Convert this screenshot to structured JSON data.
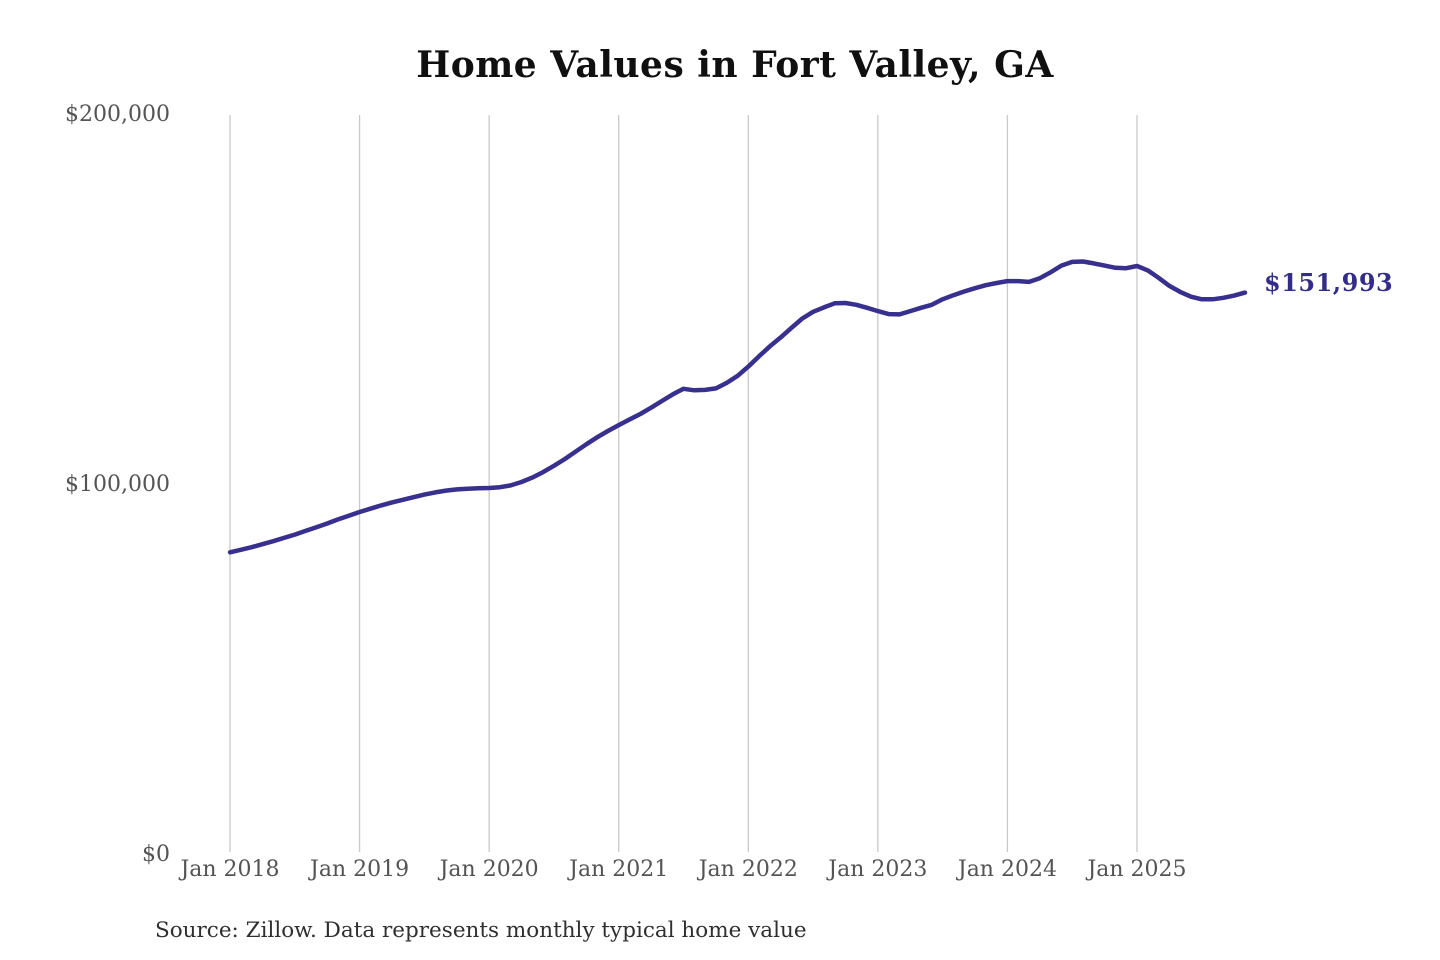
{
  "colors": {
    "line": "#38308f",
    "grid": "#c9c9c9",
    "axis_text": "#545454",
    "title_text": "#101010",
    "end_label_text": "#322d89",
    "source_text": "#2f2f2f",
    "background": "#ffffff"
  },
  "chart_data": {
    "type": "line",
    "title": "Home Values in Fort Valley, GA",
    "xlabel": "",
    "ylabel": "",
    "legend": "none",
    "grid": "vertical-only",
    "ylim": [
      0,
      200000
    ],
    "y_ticks": [
      {
        "label": "$0",
        "value": 0
      },
      {
        "label": "$100,000",
        "value": 100000
      },
      {
        "label": "$200,000",
        "value": 200000
      }
    ],
    "x_ticks": [
      "Jan 2018",
      "Jan 2019",
      "Jan 2020",
      "Jan 2021",
      "Jan 2022",
      "Jan 2023",
      "Jan 2024",
      "Jan 2025"
    ],
    "x_tick_months": [
      0,
      12,
      24,
      36,
      48,
      60,
      72,
      84
    ],
    "frequency": "monthly",
    "x_start": "Jan 2018",
    "x_end": "Nov 2025",
    "end_label": "$151,993",
    "final_value": 151993,
    "source": "Source: Zillow. Data represents monthly typical home value",
    "series": [
      {
        "name": "Typical home value",
        "values": [
          81800,
          82500,
          83200,
          84000,
          84800,
          85700,
          86600,
          87600,
          88600,
          89600,
          90700,
          91700,
          92700,
          93600,
          94500,
          95300,
          96000,
          96700,
          97400,
          98000,
          98500,
          98800,
          99000,
          99100,
          99200,
          99400,
          99900,
          100800,
          102000,
          103500,
          105200,
          107000,
          109000,
          111000,
          112900,
          114600,
          116200,
          117700,
          119200,
          120900,
          122700,
          124500,
          126000,
          125600,
          125700,
          126100,
          127600,
          129500,
          132000,
          134800,
          137500,
          139900,
          142500,
          145000,
          146800,
          148000,
          149100,
          149200,
          148700,
          147900,
          147000,
          146200,
          146100,
          147000,
          147900,
          148700,
          150200,
          151300,
          152300,
          153200,
          154000,
          154600,
          155100,
          155100,
          154900,
          155900,
          157500,
          159300,
          160300,
          160400,
          159900,
          159300,
          158700,
          158600,
          159200,
          158000,
          156000,
          153800,
          152200,
          150900,
          150200,
          150200,
          150600,
          151200,
          151993
        ]
      }
    ]
  }
}
